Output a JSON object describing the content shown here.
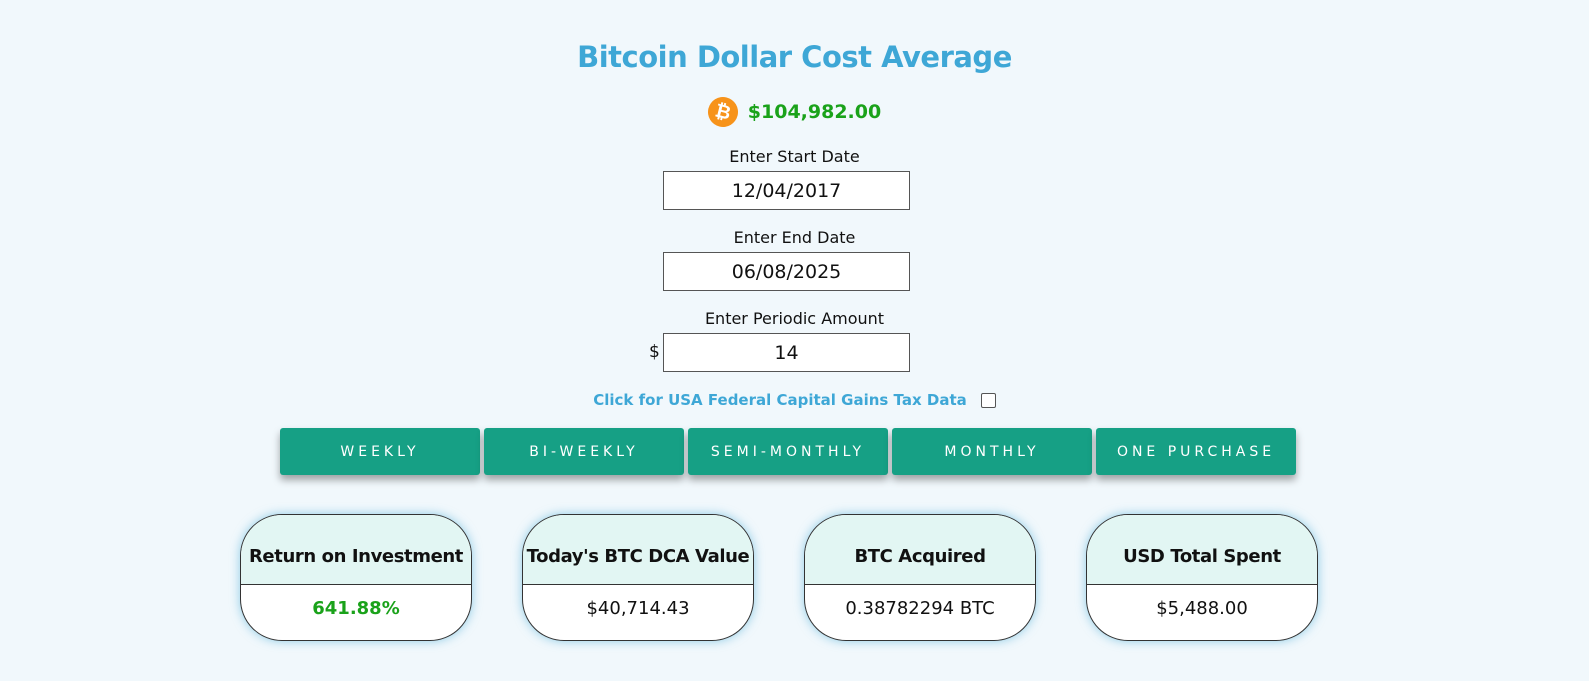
{
  "page": {
    "title": "Bitcoin Dollar Cost Average"
  },
  "price": {
    "icon": "bitcoin-icon",
    "value": "$104,982.00",
    "color": "#1aa21a"
  },
  "form": {
    "start_date": {
      "label": "Enter Start Date",
      "value": "12/04/2017"
    },
    "end_date": {
      "label": "Enter End Date",
      "value": "06/08/2025"
    },
    "amount": {
      "label": "Enter Periodic Amount",
      "currency": "$",
      "value": "14"
    },
    "tax": {
      "label": "Click for USA Federal Capital Gains Tax Data",
      "checked": false
    }
  },
  "frequency_buttons": [
    {
      "label": "WEEKLY"
    },
    {
      "label": "BI-WEEKLY"
    },
    {
      "label": "SEMI-MONTHLY"
    },
    {
      "label": "MONTHLY"
    },
    {
      "label": "ONE PURCHASE"
    }
  ],
  "results": [
    {
      "title": "Return on Investment",
      "value": "641.88%",
      "highlight": true
    },
    {
      "title": "Today's BTC DCA Value",
      "value": "$40,714.43",
      "highlight": false
    },
    {
      "title": "BTC Acquired",
      "value": "0.38782294 BTC",
      "highlight": false
    },
    {
      "title": "USD Total Spent",
      "value": "$5,488.00",
      "highlight": false
    }
  ],
  "colors": {
    "background": "#f1f8fc",
    "accent": "#3ea7d6",
    "button": "#16a085",
    "card_header": "#e2f6f3",
    "bitcoin": "#f7931a"
  }
}
